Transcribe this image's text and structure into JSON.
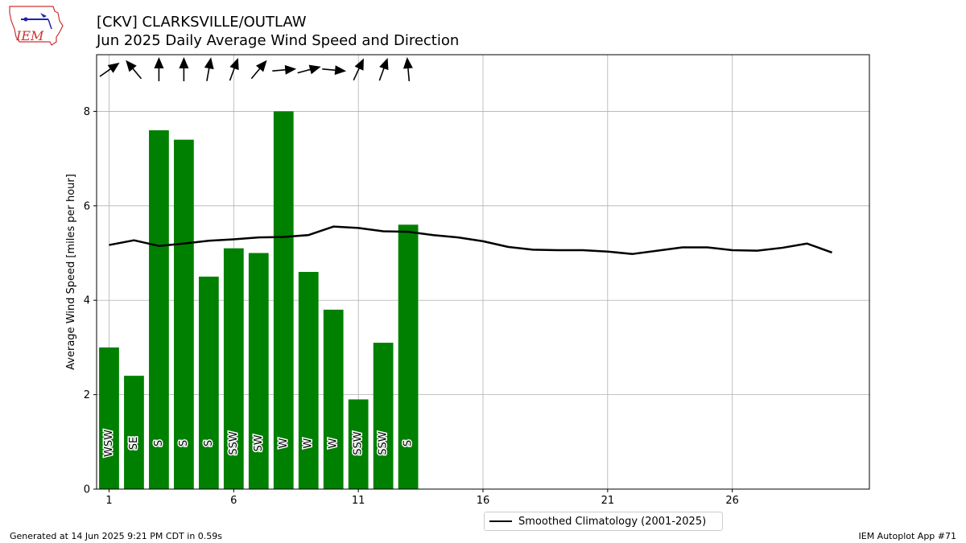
{
  "header": {
    "title": "[CKV] CLARKSVILLE/OUTLAW",
    "subtitle": "Jun 2025 Daily Average Wind Speed and Direction"
  },
  "logo": {
    "text": "IEM",
    "icon": "iem-iowa-logo"
  },
  "footer": {
    "generated": "Generated at 14 Jun 2025 9:21 PM CDT in 0.59s",
    "app": "IEM Autoplot App #71"
  },
  "colors": {
    "bar": "#008000",
    "climatology": "#000000",
    "grid": "#b0b0b0"
  },
  "chart_data": {
    "type": "bar",
    "title": "[CKV] CLARKSVILLE/OUTLAW",
    "subtitle": "Jun 2025 Daily Average Wind Speed and Direction",
    "xlabel": "",
    "ylabel": "Average Wind Speed [miles per hour]",
    "xlim": [
      0.5,
      31.5
    ],
    "ylim": [
      0,
      9.2
    ],
    "xticks": [
      1,
      6,
      11,
      16,
      21,
      26
    ],
    "yticks": [
      0,
      2,
      4,
      6,
      8
    ],
    "grid": true,
    "days": [
      1,
      2,
      3,
      4,
      5,
      6,
      7,
      8,
      9,
      10,
      11,
      12,
      13
    ],
    "values": [
      3.0,
      2.4,
      7.6,
      7.4,
      4.5,
      5.1,
      5.0,
      8.0,
      4.6,
      3.8,
      1.9,
      3.1,
      5.6
    ],
    "direction_labels": [
      "WSW",
      "SE",
      "S",
      "S",
      "S",
      "SSW",
      "SW",
      "W",
      "W",
      "W",
      "SSW",
      "SSW",
      "S"
    ],
    "direction_degrees": [
      235,
      140,
      180,
      180,
      190,
      200,
      220,
      265,
      255,
      275,
      205,
      200,
      175
    ],
    "climatology": {
      "name": "Smoothed Climatology (2001-2025)",
      "x": [
        1,
        2,
        3,
        4,
        5,
        6,
        7,
        8,
        9,
        10,
        11,
        12,
        13,
        14,
        15,
        16,
        17,
        18,
        19,
        20,
        21,
        22,
        23,
        24,
        25,
        26,
        27,
        28,
        29,
        30
      ],
      "y": [
        5.17,
        5.27,
        5.15,
        5.2,
        5.26,
        5.29,
        5.33,
        5.34,
        5.38,
        5.56,
        5.53,
        5.46,
        5.45,
        5.38,
        5.33,
        5.25,
        5.13,
        5.07,
        5.06,
        5.06,
        5.03,
        4.98,
        5.05,
        5.12,
        5.12,
        5.06,
        5.05,
        5.11,
        5.2,
        5.01
      ]
    },
    "legend_position": "bottom-center"
  }
}
